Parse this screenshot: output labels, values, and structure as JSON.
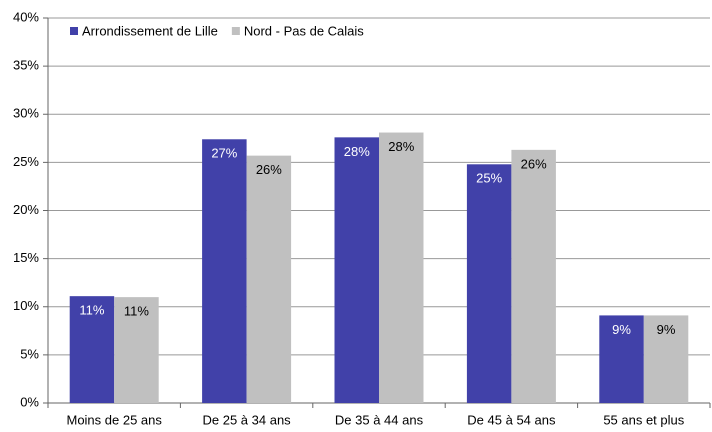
{
  "chart_data": {
    "type": "bar",
    "categories": [
      "Moins de 25 ans",
      "De 25 à 34 ans",
      "De 35 à 44 ans",
      "De 45 à 54 ans",
      "55 ans et plus"
    ],
    "series": [
      {
        "name": "Arrondissement de Lille",
        "color": "#4141a9",
        "values": [
          11.1,
          27.4,
          27.6,
          24.8,
          9.1
        ],
        "value_labels": [
          "11%",
          "27%",
          "28%",
          "25%",
          "9%"
        ]
      },
      {
        "name": "Nord - Pas de Calais",
        "color": "#c0c0c0",
        "values": [
          11.0,
          25.7,
          28.1,
          26.3,
          9.1
        ],
        "value_labels": [
          "11%",
          "26%",
          "28%",
          "26%",
          "9%"
        ]
      }
    ],
    "ylim": [
      0,
      40
    ],
    "yticks": [
      {
        "value": 0,
        "label": "0%"
      },
      {
        "value": 5,
        "label": "5%"
      },
      {
        "value": 10,
        "label": "10%"
      },
      {
        "value": 15,
        "label": "15%"
      },
      {
        "value": 20,
        "label": "20%"
      },
      {
        "value": 25,
        "label": "25%"
      },
      {
        "value": 30,
        "label": "30%"
      },
      {
        "value": 35,
        "label": "35%"
      },
      {
        "value": 40,
        "label": "40%"
      }
    ],
    "grid": true,
    "legend": "top-left"
  }
}
